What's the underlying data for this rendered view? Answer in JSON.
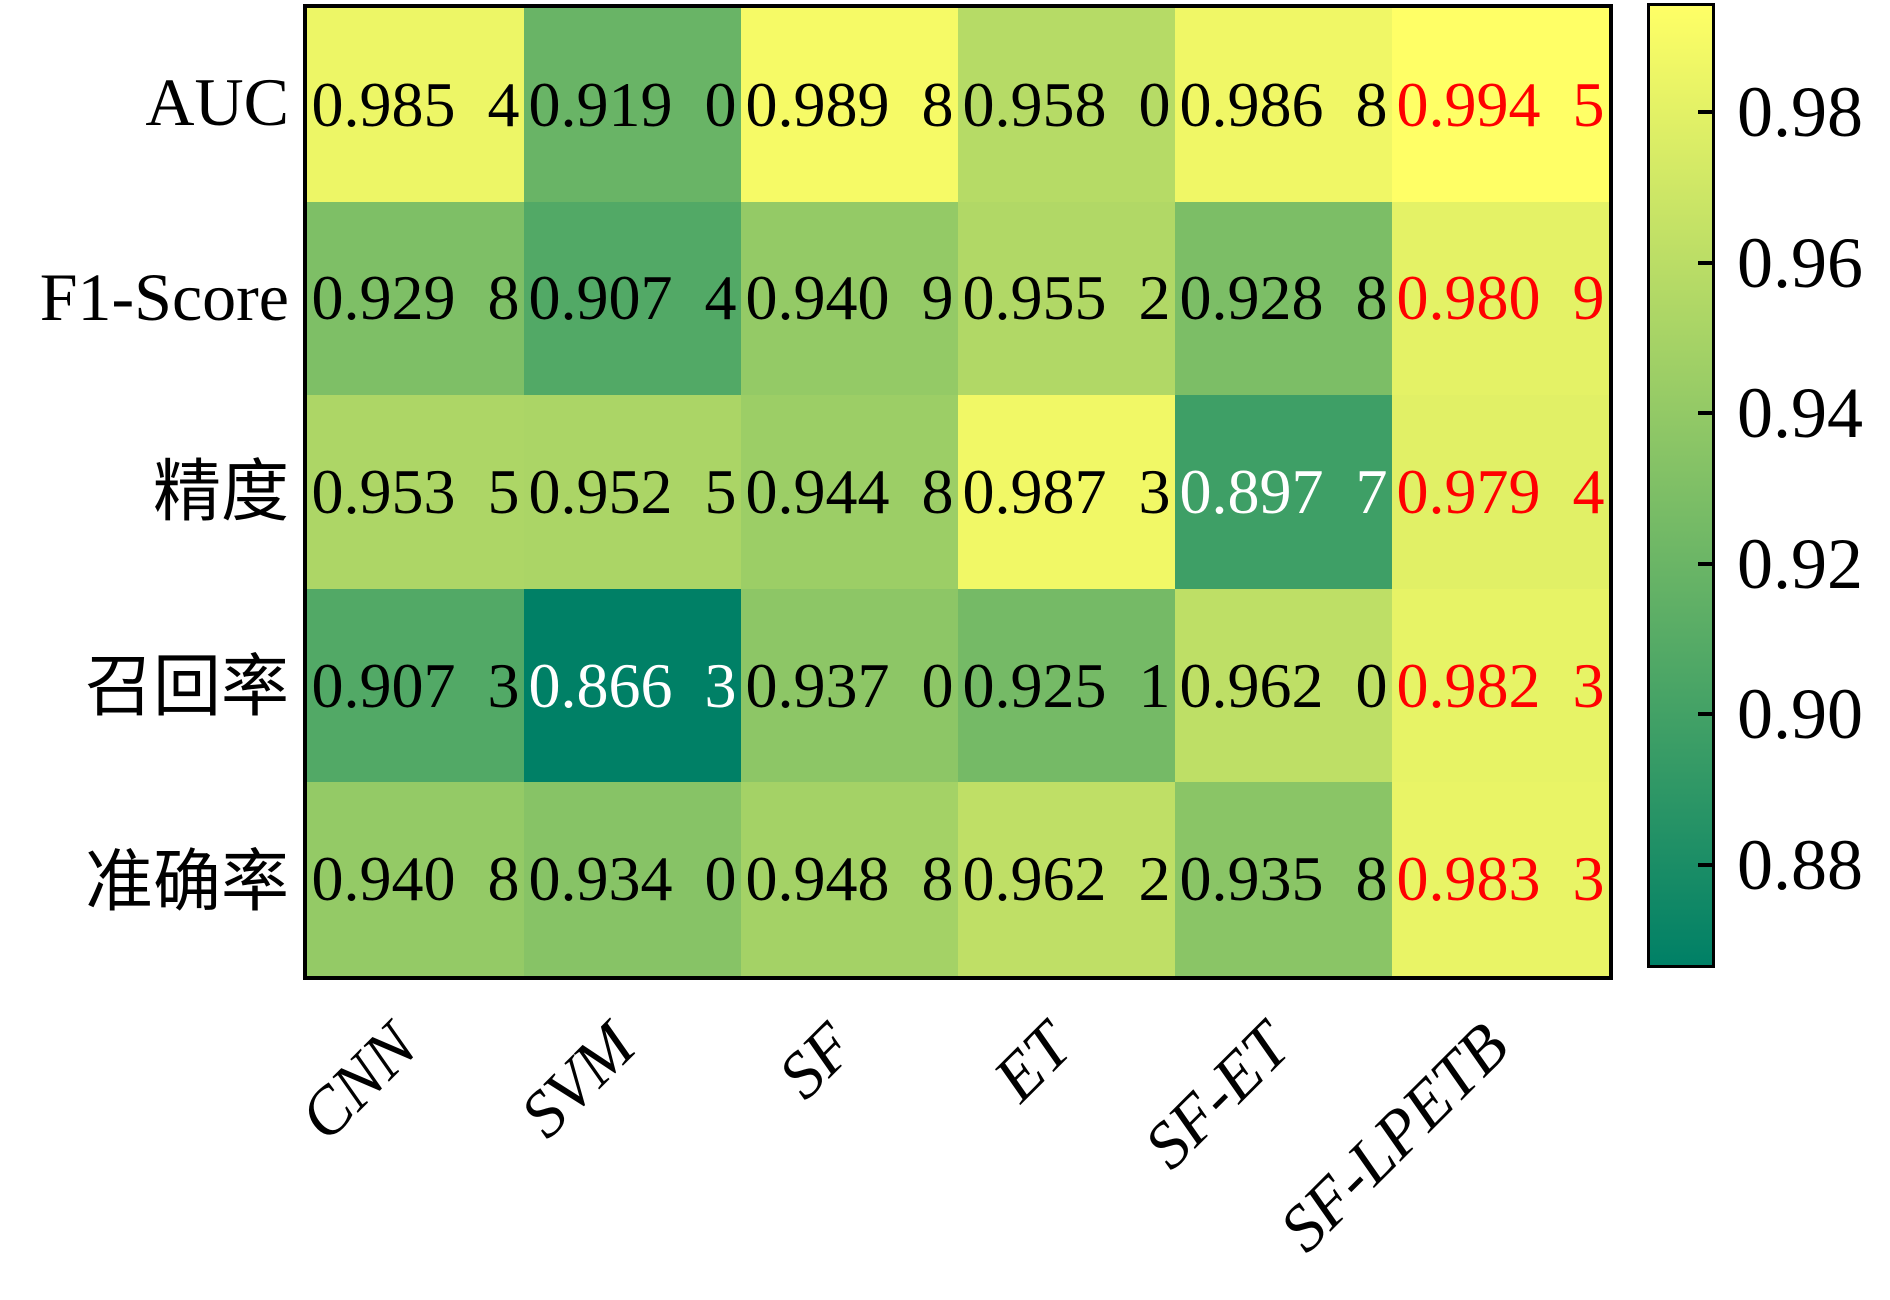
{
  "chart_data": {
    "type": "heatmap",
    "rows": [
      "AUC",
      "F1-Score",
      "精度",
      "召回率",
      "准确率"
    ],
    "columns": [
      "CNN",
      "SVM",
      "SF",
      "ET",
      "SF-ET",
      "SF-LPETB"
    ],
    "values": [
      [
        0.9854,
        0.919,
        0.9898,
        0.958,
        0.9868,
        0.9945
      ],
      [
        0.9298,
        0.9074,
        0.9409,
        0.9552,
        0.9288,
        0.9809
      ],
      [
        0.9535,
        0.9525,
        0.9448,
        0.9873,
        0.8977,
        0.9794
      ],
      [
        0.9073,
        0.8663,
        0.937,
        0.9251,
        0.962,
        0.9823
      ],
      [
        0.9408,
        0.934,
        0.9488,
        0.9622,
        0.9358,
        0.9833
      ]
    ],
    "cell_labels": [
      [
        "0.985 4",
        "0.919 0",
        "0.989 8",
        "0.958 0",
        "0.986 8",
        "0.994 5"
      ],
      [
        "0.929 8",
        "0.907 4",
        "0.940 9",
        "0.955 2",
        "0.928 8",
        "0.980 9"
      ],
      [
        "0.953 5",
        "0.952 5",
        "0.944 8",
        "0.987 3",
        "0.897 7",
        "0.979 4"
      ],
      [
        "0.907 3",
        "0.866 3",
        "0.937 0",
        "0.925 1",
        "0.962 0",
        "0.982 3"
      ],
      [
        "0.940 8",
        "0.934 0",
        "0.948 8",
        "0.962 2",
        "0.935 8",
        "0.983 3"
      ]
    ],
    "vmin": 0.8663,
    "vmax": 0.9945,
    "colormap": {
      "name": "summer",
      "low": "#008066",
      "high": "#ffff66"
    },
    "white_text_threshold": 0.28,
    "text_color_default": "#000000",
    "text_color_light": "#ffffff",
    "highlight_column": "SF-LPETB",
    "highlight_color": "#ff0000",
    "grid_on": false,
    "colorbar": {
      "position": "right",
      "tick_labels": [
        "0.98",
        "0.96",
        "0.94",
        "0.92",
        "0.90",
        "0.88"
      ],
      "tick_values": [
        0.98,
        0.96,
        0.94,
        0.92,
        0.9,
        0.88
      ]
    }
  }
}
